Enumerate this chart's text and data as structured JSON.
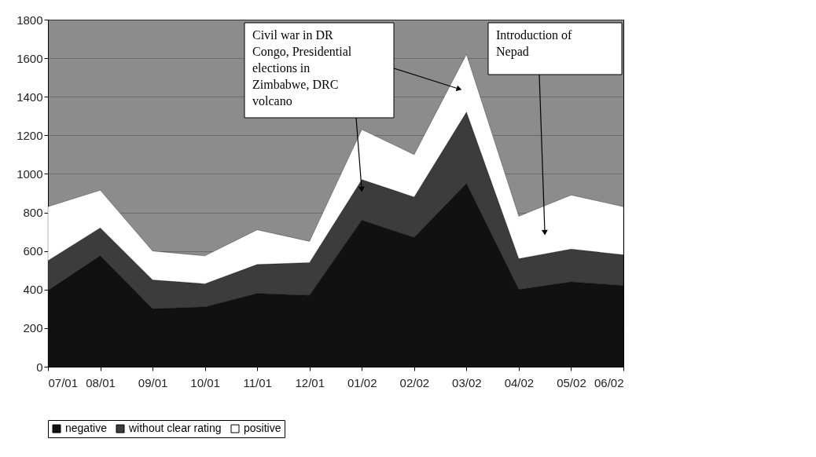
{
  "chart_data": {
    "type": "area",
    "stacked": true,
    "categories": [
      "07/01",
      "08/01",
      "09/01",
      "10/01",
      "11/01",
      "12/01",
      "01/02",
      "02/02",
      "03/02",
      "04/02",
      "05/02",
      "06/02"
    ],
    "series": [
      {
        "name": "negative",
        "color": "#111111",
        "values": [
          395,
          575,
          300,
          310,
          380,
          370,
          760,
          670,
          950,
          400,
          440,
          420
        ]
      },
      {
        "name": "without clear rating",
        "color": "#3c3c3c",
        "values": [
          155,
          145,
          150,
          120,
          150,
          170,
          210,
          210,
          370,
          160,
          170,
          160
        ]
      },
      {
        "name": "positive",
        "color": "#ffffff",
        "values": [
          280,
          195,
          150,
          145,
          180,
          110,
          260,
          220,
          300,
          220,
          280,
          250
        ]
      }
    ],
    "ylim": [
      0,
      1800
    ],
    "yticks": [
      0,
      200,
      400,
      600,
      800,
      1000,
      1200,
      1400,
      1600,
      1800
    ],
    "grid": "y",
    "legend": "bottom",
    "annotations": [
      "Civil war in DR Congo, Presidential elections in Zimbabwe, DRC volcano",
      "Introduction of Nepad"
    ]
  }
}
